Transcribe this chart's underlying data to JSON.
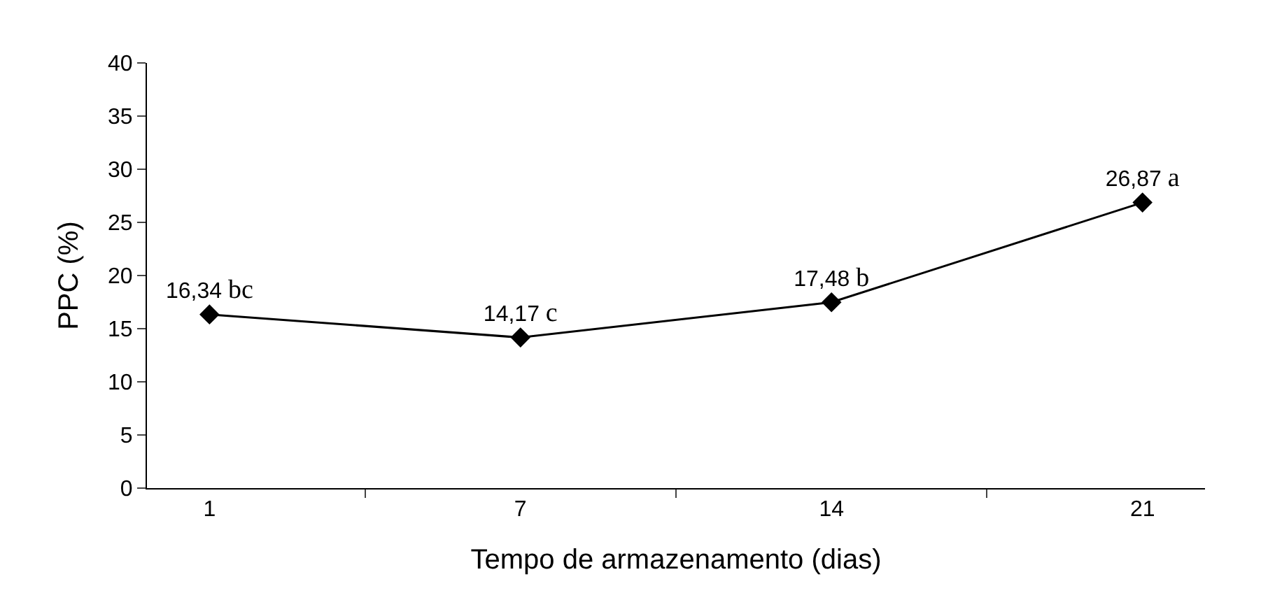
{
  "chart_data": {
    "type": "line",
    "xlabel": "Tempo de armazenamento (dias)",
    "ylabel": "PPC (%)",
    "categories": [
      "1",
      "7",
      "14",
      "21"
    ],
    "series": [
      {
        "color": "#000000",
        "values": [
          16.34,
          14.17,
          17.48,
          26.87
        ],
        "value_labels": [
          "16,34 bc",
          "14,17 c",
          "17,48 b",
          "26,87 a"
        ]
      }
    ],
    "ylim": [
      0,
      40
    ],
    "yticks": [
      0,
      5,
      10,
      15,
      20,
      25,
      30,
      35,
      40
    ],
    "grid": false,
    "marker": "diamond",
    "line_style": "solid"
  }
}
